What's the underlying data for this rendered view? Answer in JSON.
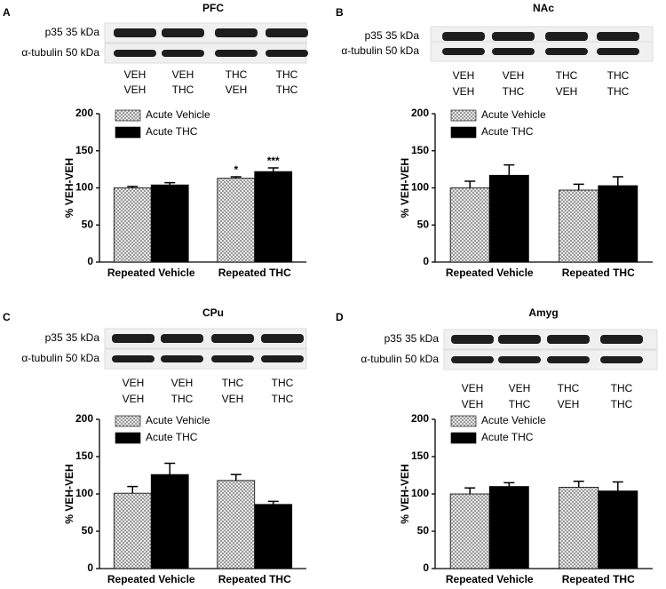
{
  "chart_data": [
    {
      "type": "bar",
      "panel": "A",
      "title": "PFC",
      "blot_rows": [
        "p35 35 kDa",
        "α-tubulin 50 kDa"
      ],
      "lanes": [
        [
          "VEH",
          "VEH"
        ],
        [
          "VEH",
          "THC"
        ],
        [
          "THC",
          "VEH"
        ],
        [
          "THC",
          "THC"
        ]
      ],
      "ylabel": "% VEH-VEH",
      "ylim": [
        0,
        200
      ],
      "yticks": [
        0,
        50,
        100,
        150,
        200
      ],
      "categories": [
        "Repeated Vehicle",
        "Repeated THC"
      ],
      "series": [
        {
          "name": "Acute Vehicle",
          "color": "#9a9a9a",
          "pattern": "checker",
          "values": [
            100,
            113
          ],
          "errors": [
            2,
            2
          ],
          "significance": [
            null,
            "*"
          ]
        },
        {
          "name": "Acute THC",
          "color": "#000000",
          "pattern": "solid",
          "values": [
            104,
            122
          ],
          "errors": [
            3,
            5
          ],
          "significance": [
            null,
            "***"
          ]
        }
      ]
    },
    {
      "type": "bar",
      "panel": "B",
      "title": "NAc",
      "blot_rows": [
        "p35 35 kDa",
        "α-tubulin 50 kDa"
      ],
      "lanes": [
        [
          "VEH",
          "VEH"
        ],
        [
          "VEH",
          "THC"
        ],
        [
          "THC",
          "VEH"
        ],
        [
          "THC",
          "THC"
        ]
      ],
      "ylabel": "% VEH-VEH",
      "ylim": [
        0,
        200
      ],
      "yticks": [
        0,
        50,
        100,
        150,
        200
      ],
      "categories": [
        "Repeated Vehicle",
        "Repeated THC"
      ],
      "series": [
        {
          "name": "Acute Vehicle",
          "color": "#9a9a9a",
          "pattern": "checker",
          "values": [
            100,
            97
          ],
          "errors": [
            9,
            8
          ]
        },
        {
          "name": "Acute THC",
          "color": "#000000",
          "pattern": "solid",
          "values": [
            117,
            103
          ],
          "errors": [
            14,
            12
          ]
        }
      ]
    },
    {
      "type": "bar",
      "panel": "C",
      "title": "CPu",
      "blot_rows": [
        "p35 35 kDa",
        "α-tubulin 50 kDa"
      ],
      "lanes": [
        [
          "VEH",
          "VEH"
        ],
        [
          "VEH",
          "THC"
        ],
        [
          "THC",
          "VEH"
        ],
        [
          "THC",
          "THC"
        ]
      ],
      "ylabel": "% VEH-VEH",
      "ylim": [
        0,
        200
      ],
      "yticks": [
        0,
        50,
        100,
        150,
        200
      ],
      "categories": [
        "Repeated Vehicle",
        "Repeated THC"
      ],
      "series": [
        {
          "name": "Acute Vehicle",
          "color": "#9a9a9a",
          "pattern": "checker",
          "values": [
            101,
            118
          ],
          "errors": [
            9,
            8
          ]
        },
        {
          "name": "Acute THC",
          "color": "#000000",
          "pattern": "solid",
          "values": [
            126,
            86
          ],
          "errors": [
            15,
            4
          ]
        }
      ]
    },
    {
      "type": "bar",
      "panel": "D",
      "title": "Amyg",
      "blot_rows": [
        "p35 35 kDa",
        "α-tubulin 50 kDa"
      ],
      "lanes": [
        [
          "VEH",
          "VEH"
        ],
        [
          "VEH",
          "THC"
        ],
        [
          "THC",
          "VEH"
        ],
        [
          "THC",
          "THC"
        ]
      ],
      "ylabel": "% VEH-VEH",
      "ylim": [
        0,
        200
      ],
      "yticks": [
        0,
        50,
        100,
        150,
        200
      ],
      "categories": [
        "Repeated Vehicle",
        "Repeated THC"
      ],
      "series": [
        {
          "name": "Acute Vehicle",
          "color": "#9a9a9a",
          "pattern": "checker",
          "values": [
            100,
            109
          ],
          "errors": [
            8,
            8
          ]
        },
        {
          "name": "Acute THC",
          "color": "#000000",
          "pattern": "solid",
          "values": [
            110,
            104
          ],
          "errors": [
            5,
            12
          ]
        }
      ]
    }
  ]
}
